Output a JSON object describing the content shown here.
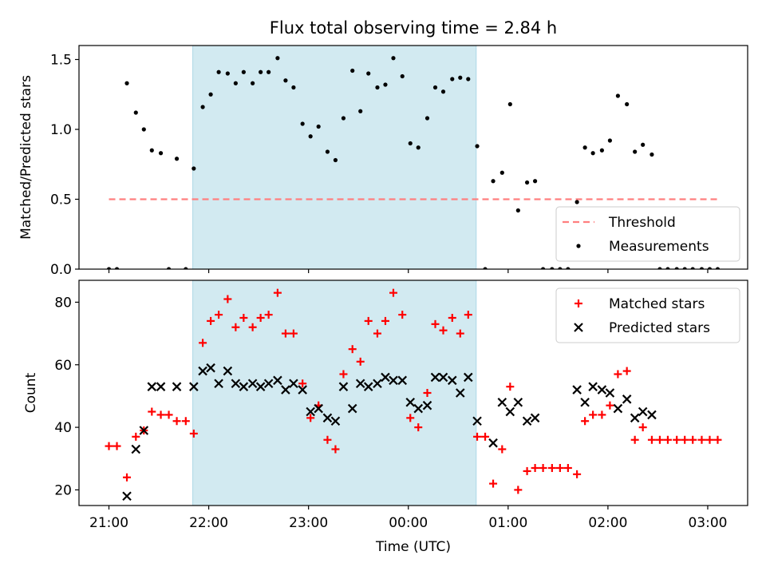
{
  "title": "Flux total observing time = 2.84 h",
  "colors": {
    "shade": "#add8e6",
    "threshold": "#ff7f7f",
    "measurement": "#000000",
    "matched": "#ff0000",
    "predicted": "#000000"
  },
  "chart_data": [
    {
      "type": "scatter",
      "title": "Flux total observing time = 2.84 h",
      "xlabel": "",
      "ylabel": "Matched/Predicted stars",
      "x_unit": "hours since 21:00 UTC",
      "xlim": [
        -0.3,
        6.4
      ],
      "ylim": [
        0.0,
        1.6
      ],
      "yticks": [
        0.0,
        0.5,
        1.0,
        1.5
      ],
      "ytick_labels": [
        "0.0",
        "0.5",
        "1.0",
        "1.5"
      ],
      "shaded_interval": [
        0.84,
        3.68
      ],
      "legend_position": "lower right",
      "legend": [
        "Threshold",
        "Measurements"
      ],
      "threshold": {
        "name": "Threshold",
        "y": 0.5,
        "x_range": [
          0.0,
          6.1
        ],
        "style": "dashed"
      },
      "series": [
        {
          "name": "Measurements",
          "marker": "dot",
          "points": [
            [
              0.0,
              0
            ],
            [
              0.08,
              0
            ],
            [
              0.18,
              1.33
            ],
            [
              0.27,
              1.12
            ],
            [
              0.35,
              1.0
            ],
            [
              0.43,
              0.85
            ],
            [
              0.52,
              0.83
            ],
            [
              0.6,
              0
            ],
            [
              0.68,
              0.79
            ],
            [
              0.77,
              0
            ],
            [
              0.85,
              0.72
            ],
            [
              0.94,
              1.16
            ],
            [
              1.02,
              1.25
            ],
            [
              1.1,
              1.41
            ],
            [
              1.19,
              1.4
            ],
            [
              1.27,
              1.33
            ],
            [
              1.35,
              1.41
            ],
            [
              1.44,
              1.33
            ],
            [
              1.52,
              1.41
            ],
            [
              1.6,
              1.41
            ],
            [
              1.69,
              1.51
            ],
            [
              1.77,
              1.35
            ],
            [
              1.85,
              1.3
            ],
            [
              1.94,
              1.04
            ],
            [
              2.02,
              0.95
            ],
            [
              2.1,
              1.02
            ],
            [
              2.19,
              0.84
            ],
            [
              2.27,
              0.78
            ],
            [
              2.35,
              1.08
            ],
            [
              2.44,
              1.42
            ],
            [
              2.52,
              1.13
            ],
            [
              2.6,
              1.4
            ],
            [
              2.69,
              1.3
            ],
            [
              2.77,
              1.32
            ],
            [
              2.85,
              1.51
            ],
            [
              2.94,
              1.38
            ],
            [
              3.02,
              0.9
            ],
            [
              3.1,
              0.87
            ],
            [
              3.19,
              1.08
            ],
            [
              3.27,
              1.3
            ],
            [
              3.35,
              1.27
            ],
            [
              3.44,
              1.36
            ],
            [
              3.52,
              1.37
            ],
            [
              3.6,
              1.36
            ],
            [
              3.69,
              0.88
            ],
            [
              3.77,
              0
            ],
            [
              3.85,
              0.63
            ],
            [
              3.94,
              0.69
            ],
            [
              4.02,
              1.18
            ],
            [
              4.1,
              0.42
            ],
            [
              4.19,
              0.62
            ],
            [
              4.27,
              0.63
            ],
            [
              4.35,
              0
            ],
            [
              4.44,
              0
            ],
            [
              4.52,
              0
            ],
            [
              4.6,
              0
            ],
            [
              4.69,
              0.48
            ],
            [
              4.77,
              0.87
            ],
            [
              4.85,
              0.83
            ],
            [
              4.94,
              0.85
            ],
            [
              5.02,
              0.92
            ],
            [
              5.1,
              1.24
            ],
            [
              5.19,
              1.18
            ],
            [
              5.27,
              0.84
            ],
            [
              5.35,
              0.89
            ],
            [
              5.44,
              0.82
            ],
            [
              5.52,
              0
            ],
            [
              5.6,
              0
            ],
            [
              5.69,
              0
            ],
            [
              5.77,
              0
            ],
            [
              5.85,
              0
            ],
            [
              5.94,
              0
            ],
            [
              6.02,
              0
            ],
            [
              6.1,
              0
            ]
          ]
        }
      ]
    },
    {
      "type": "scatter",
      "xlabel": "Time (UTC)",
      "ylabel": "Count",
      "x_unit": "hours since 21:00 UTC",
      "xlim": [
        -0.3,
        6.4
      ],
      "ylim": [
        15,
        87
      ],
      "xticks": [
        0,
        1,
        2,
        3,
        4,
        5,
        6
      ],
      "xtick_labels": [
        "21:00",
        "22:00",
        "23:00",
        "00:00",
        "01:00",
        "02:00",
        "03:00"
      ],
      "yticks": [
        20,
        40,
        60,
        80
      ],
      "ytick_labels": [
        "20",
        "40",
        "60",
        "80"
      ],
      "shaded_interval": [
        0.84,
        3.68
      ],
      "legend_position": "upper right",
      "legend": [
        "Matched stars",
        "Predicted stars"
      ],
      "series": [
        {
          "name": "Matched stars",
          "marker": "plus",
          "points": [
            [
              0.0,
              34
            ],
            [
              0.08,
              34
            ],
            [
              0.18,
              24
            ],
            [
              0.27,
              37
            ],
            [
              0.35,
              39
            ],
            [
              0.43,
              45
            ],
            [
              0.52,
              44
            ],
            [
              0.6,
              44
            ],
            [
              0.68,
              42
            ],
            [
              0.77,
              42
            ],
            [
              0.85,
              38
            ],
            [
              0.94,
              67
            ],
            [
              1.02,
              74
            ],
            [
              1.1,
              76
            ],
            [
              1.19,
              81
            ],
            [
              1.27,
              72
            ],
            [
              1.35,
              75
            ],
            [
              1.44,
              72
            ],
            [
              1.52,
              75
            ],
            [
              1.6,
              76
            ],
            [
              1.69,
              83
            ],
            [
              1.77,
              70
            ],
            [
              1.85,
              70
            ],
            [
              1.94,
              54
            ],
            [
              2.02,
              43
            ],
            [
              2.1,
              47
            ],
            [
              2.19,
              36
            ],
            [
              2.27,
              33
            ],
            [
              2.35,
              57
            ],
            [
              2.44,
              65
            ],
            [
              2.52,
              61
            ],
            [
              2.6,
              74
            ],
            [
              2.69,
              70
            ],
            [
              2.77,
              74
            ],
            [
              2.85,
              83
            ],
            [
              2.94,
              76
            ],
            [
              3.02,
              43
            ],
            [
              3.1,
              40
            ],
            [
              3.19,
              51
            ],
            [
              3.27,
              73
            ],
            [
              3.35,
              71
            ],
            [
              3.44,
              75
            ],
            [
              3.52,
              70
            ],
            [
              3.6,
              76
            ],
            [
              3.69,
              37
            ],
            [
              3.77,
              37
            ],
            [
              3.85,
              22
            ],
            [
              3.94,
              33
            ],
            [
              4.02,
              53
            ],
            [
              4.1,
              20
            ],
            [
              4.19,
              26
            ],
            [
              4.27,
              27
            ],
            [
              4.35,
              27
            ],
            [
              4.44,
              27
            ],
            [
              4.52,
              27
            ],
            [
              4.6,
              27
            ],
            [
              4.69,
              25
            ],
            [
              4.77,
              42
            ],
            [
              4.85,
              44
            ],
            [
              4.94,
              44
            ],
            [
              5.02,
              47
            ],
            [
              5.1,
              57
            ],
            [
              5.19,
              58
            ],
            [
              5.27,
              36
            ],
            [
              5.35,
              40
            ],
            [
              5.44,
              36
            ],
            [
              5.52,
              36
            ],
            [
              5.6,
              36
            ],
            [
              5.69,
              36
            ],
            [
              5.77,
              36
            ],
            [
              5.85,
              36
            ],
            [
              5.94,
              36
            ],
            [
              6.02,
              36
            ],
            [
              6.1,
              36
            ]
          ]
        },
        {
          "name": "Predicted stars",
          "marker": "x",
          "points": [
            [
              0.18,
              18
            ],
            [
              0.27,
              33
            ],
            [
              0.35,
              39
            ],
            [
              0.43,
              53
            ],
            [
              0.52,
              53
            ],
            [
              0.68,
              53
            ],
            [
              0.85,
              53
            ],
            [
              0.94,
              58
            ],
            [
              1.02,
              59
            ],
            [
              1.1,
              54
            ],
            [
              1.19,
              58
            ],
            [
              1.27,
              54
            ],
            [
              1.35,
              53
            ],
            [
              1.44,
              54
            ],
            [
              1.52,
              53
            ],
            [
              1.6,
              54
            ],
            [
              1.69,
              55
            ],
            [
              1.77,
              52
            ],
            [
              1.85,
              54
            ],
            [
              1.94,
              52
            ],
            [
              2.02,
              45
            ],
            [
              2.1,
              46
            ],
            [
              2.19,
              43
            ],
            [
              2.27,
              42
            ],
            [
              2.35,
              53
            ],
            [
              2.44,
              46
            ],
            [
              2.52,
              54
            ],
            [
              2.6,
              53
            ],
            [
              2.69,
              54
            ],
            [
              2.77,
              56
            ],
            [
              2.85,
              55
            ],
            [
              2.94,
              55
            ],
            [
              3.02,
              48
            ],
            [
              3.1,
              46
            ],
            [
              3.19,
              47
            ],
            [
              3.27,
              56
            ],
            [
              3.35,
              56
            ],
            [
              3.44,
              55
            ],
            [
              3.52,
              51
            ],
            [
              3.6,
              56
            ],
            [
              3.69,
              42
            ],
            [
              3.85,
              35
            ],
            [
              3.94,
              48
            ],
            [
              4.02,
              45
            ],
            [
              4.1,
              48
            ],
            [
              4.19,
              42
            ],
            [
              4.27,
              43
            ],
            [
              4.69,
              52
            ],
            [
              4.77,
              48
            ],
            [
              4.85,
              53
            ],
            [
              4.94,
              52
            ],
            [
              5.02,
              51
            ],
            [
              5.1,
              46
            ],
            [
              5.19,
              49
            ],
            [
              5.27,
              43
            ],
            [
              5.35,
              45
            ],
            [
              5.44,
              44
            ]
          ]
        }
      ]
    }
  ]
}
